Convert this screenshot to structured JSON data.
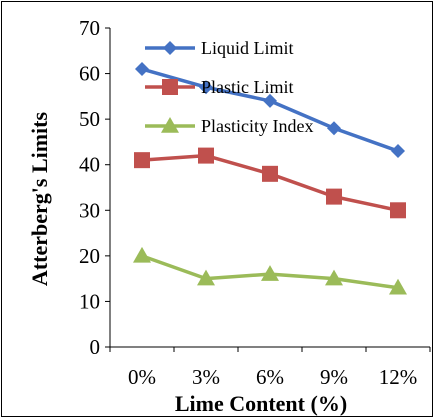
{
  "chart_data": {
    "type": "line",
    "title": "",
    "xlabel": "Lime Content (%)",
    "ylabel": "Atterberg's Limits",
    "categories": [
      "0%",
      "3%",
      "6%",
      "9%",
      "12%"
    ],
    "ylim": [
      0,
      70
    ],
    "yticks": [
      0,
      10,
      20,
      30,
      40,
      50,
      60,
      70
    ],
    "grid": false,
    "legend_position": "top-right",
    "series": [
      {
        "name": "Liquid Limit",
        "values": [
          61,
          57,
          54,
          48,
          43
        ],
        "color": "#4472C4",
        "marker": "diamond"
      },
      {
        "name": "Plastic Limit",
        "values": [
          41,
          42,
          38,
          33,
          30
        ],
        "color": "#C0504D",
        "marker": "square"
      },
      {
        "name": "Plasticity Index",
        "values": [
          20,
          15,
          16,
          15,
          13
        ],
        "color": "#9BBB59",
        "marker": "triangle"
      }
    ]
  }
}
